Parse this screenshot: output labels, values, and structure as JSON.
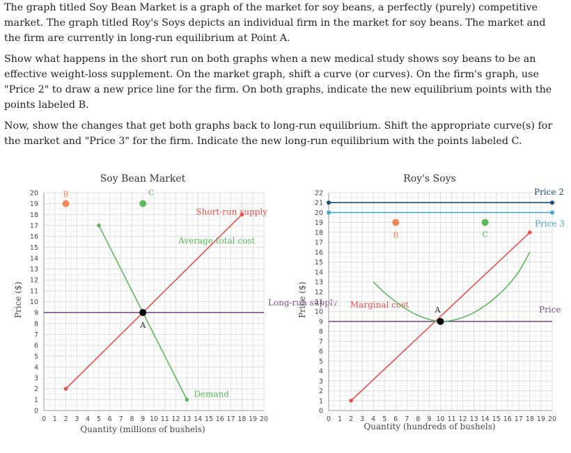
{
  "instructions": [
    "The graph titled Soy Bean Market is a graph of the market for soy beans, a perfectly (purely) competitive market. The graph titled Roy's Soys depicts an individual firm in the market for soy beans. The market and the firm are currently in long-run equilibrium at Point A.",
    "Show what happens in the short run on both graphs when a new medical study shows soy beans to be an effective weight-loss supplement. On the market graph, shift a curve (or curves). On the firm's graph, use \"Price 2\" to draw a new price line for the firm. On both graphs, indicate the new equilibrium points with the points labeled B.",
    "Now, show the changes that get both graphs back to long-run equilibrium. Shift the appropriate curve(s) for the market and \"Price 3\" for the firm. Indicate the new long-run equilibrium with the points labeled C."
  ],
  "chart_data": [
    {
      "type": "line",
      "title": "Soy Bean Market",
      "xlabel": "Quantity (millions of bushels)",
      "ylabel": "Price ($)",
      "xlim": [
        0,
        20
      ],
      "ylim": [
        0,
        20
      ],
      "xticks": [
        "0",
        "1",
        "2",
        "3",
        "4",
        "5",
        "6",
        "7",
        "8",
        "9",
        "10",
        "11",
        "12",
        "13",
        "14",
        "15",
        "16",
        "17",
        "18",
        "19",
        "20"
      ],
      "yticks": [
        "0",
        "1",
        "2",
        "3",
        "4",
        "5",
        "6",
        "7",
        "8",
        "9",
        "10",
        "11",
        "12",
        "13",
        "14",
        "15",
        "16",
        "17",
        "18",
        "19",
        "20"
      ],
      "grid": true,
      "series": [
        {
          "name": "Short-run supply",
          "color": "#e8504a",
          "x": [
            2,
            18
          ],
          "y": [
            2,
            18
          ],
          "label_at": [
            17.5,
            19
          ]
        },
        {
          "name": "Demand",
          "color": "#5cb85c",
          "x": [
            5,
            13
          ],
          "y": [
            17,
            1
          ],
          "label_at": [
            13.6,
            1.8
          ]
        },
        {
          "name": "Long-run supply",
          "color": "#7b4f8e",
          "x": [
            0,
            20
          ],
          "y": [
            9,
            9
          ],
          "label_at": [
            17.5,
            10
          ]
        }
      ],
      "points": [
        {
          "label": "A",
          "x": 9,
          "y": 9,
          "color": "#000000"
        },
        {
          "label": "B",
          "x": 2,
          "y": 19,
          "color": "#f0885a"
        },
        {
          "label": "C",
          "x": 9,
          "y": 19,
          "color": "#5cb85c"
        }
      ]
    },
    {
      "type": "line",
      "title": "Roy's Soys",
      "xlabel": "Quantity (hundreds of bushels)",
      "ylabel": "Price ($)",
      "xlim": [
        0,
        20
      ],
      "ylim": [
        0,
        22
      ],
      "xticks": [
        "0",
        "1",
        "2",
        "3",
        "4",
        "5",
        "6",
        "7",
        "8",
        "9",
        "10",
        "11",
        "12",
        "13",
        "14",
        "15",
        "16",
        "17",
        "18",
        "19",
        "20"
      ],
      "yticks": [
        "0",
        "1",
        "2",
        "3",
        "4",
        "5",
        "6",
        "7",
        "8",
        "9",
        "10",
        "11",
        "12",
        "13",
        "14",
        "15",
        "16",
        "17",
        "18",
        "19",
        "20",
        "21",
        "22"
      ],
      "grid": true,
      "series": [
        {
          "name": "Price 2",
          "color": "#1f4e79",
          "x": [
            0,
            20
          ],
          "y": [
            21,
            21
          ]
        },
        {
          "name": "Price 3",
          "color": "#4aa8c8",
          "x": [
            0,
            20
          ],
          "y": [
            20,
            20
          ]
        },
        {
          "name": "Price",
          "color": "#7b4f8e",
          "x": [
            0,
            20
          ],
          "y": [
            9,
            9
          ]
        },
        {
          "name": "Marginal cost",
          "color": "#e8504a",
          "x": [
            2,
            18
          ],
          "y": [
            1,
            18
          ]
        },
        {
          "name": "Average total cost",
          "color": "#5cb85c",
          "x": [
            4,
            5,
            6,
            7,
            8,
            9,
            10,
            11,
            12,
            13,
            14,
            15,
            16,
            17,
            18
          ],
          "y": [
            13,
            11.9,
            11,
            10.2,
            9.6,
            9.2,
            9,
            9.1,
            9.4,
            9.9,
            10.6,
            11.5,
            12.6,
            14,
            16
          ]
        }
      ],
      "points": [
        {
          "label": "A",
          "x": 10,
          "y": 9,
          "color": "#000000"
        },
        {
          "label": "B",
          "x": 6,
          "y": 19,
          "color": "#f0885a"
        },
        {
          "label": "C",
          "x": 14,
          "y": 19,
          "color": "#5cb85c"
        }
      ]
    }
  ]
}
